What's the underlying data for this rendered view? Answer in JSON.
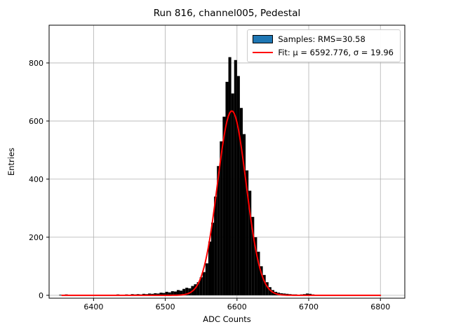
{
  "figure": {
    "title": "Run 816, channel005, Pedestal",
    "xlabel": "ADC Counts",
    "ylabel": "Entries"
  },
  "legend": {
    "samples_label": "Samples: RMS=30.58",
    "fit_label": "Fit: μ = 6592.776, σ = 19.96",
    "samples_color": "#1f77b4",
    "fit_color": "#ff0000"
  },
  "chart_data": {
    "type": "bar",
    "subtype": "histogram_with_gaussian_fit",
    "title": "Run 816, channel005, Pedestal",
    "xlabel": "ADC Counts",
    "ylabel": "Entries",
    "xlim": [
      6338,
      6834
    ],
    "ylim": [
      -10,
      930
    ],
    "xticks": [
      6400,
      6500,
      6600,
      6700,
      6800
    ],
    "yticks": [
      0,
      200,
      400,
      600,
      800
    ],
    "grid": true,
    "legend_position": "upper right",
    "bar_color": "#000000",
    "histogram": {
      "rms": 30.58,
      "bin_start": 6352,
      "bin_width": 4,
      "counts": [
        2,
        0,
        3,
        0,
        1,
        0,
        2,
        0,
        1,
        0,
        2,
        1,
        0,
        2,
        1,
        0,
        2,
        1,
        2,
        1,
        3,
        1,
        2,
        3,
        2,
        4,
        3,
        4,
        3,
        5,
        4,
        6,
        5,
        7,
        6,
        9,
        8,
        12,
        10,
        14,
        13,
        18,
        16,
        22,
        26,
        24,
        32,
        38,
        45,
        62,
        80,
        110,
        185,
        250,
        340,
        445,
        530,
        615,
        735,
        820,
        695,
        810,
        755,
        645,
        555,
        430,
        360,
        270,
        200,
        150,
        100,
        70,
        45,
        28,
        18,
        12,
        9,
        7,
        6,
        5,
        4,
        3,
        3,
        2,
        3,
        4,
        6,
        5,
        3,
        2,
        2,
        1,
        2,
        1,
        2,
        1,
        0,
        2,
        1,
        0,
        2,
        1,
        2,
        1,
        0,
        2,
        1,
        2,
        1,
        2,
        0,
        1
      ]
    },
    "fit": {
      "type": "gaussian",
      "amplitude": 635,
      "mu": 6592.776,
      "sigma": 19.96,
      "x_range": [
        6356,
        6800
      ],
      "color": "#ff0000"
    }
  }
}
